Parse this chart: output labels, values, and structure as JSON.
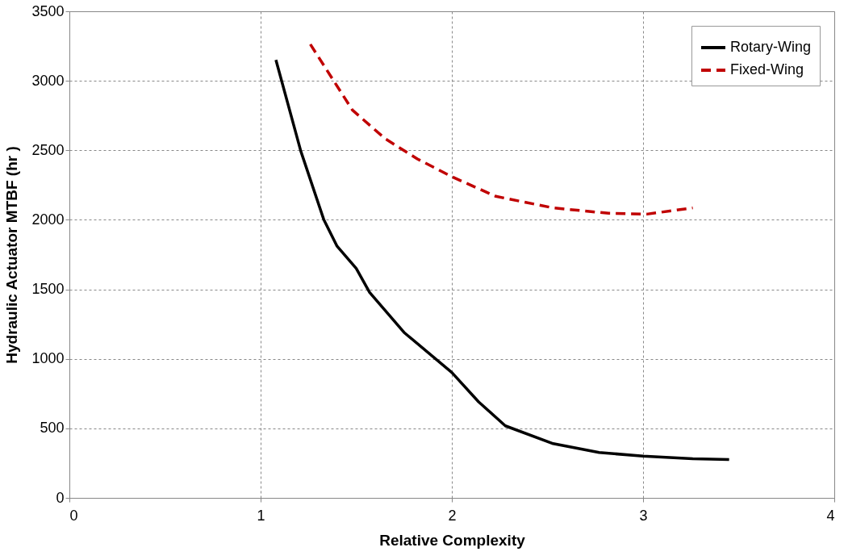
{
  "chart_data": {
    "type": "line",
    "xlabel": "Relative Complexity",
    "ylabel": "Hydraulic Actuator MTBF (hr )",
    "xlim": [
      0,
      4
    ],
    "xticks": [
      0,
      1,
      2,
      3,
      4
    ],
    "ylim": [
      0,
      3500
    ],
    "yticks": [
      0,
      500,
      1000,
      1500,
      2000,
      2500,
      3000,
      3500
    ],
    "grid": true,
    "legend": "top right",
    "marker": "none",
    "series": [
      {
        "name": "Rotary-Wing",
        "color": "#000000",
        "line_style": "solid",
        "x": [
          1.08,
          1.21,
          1.33,
          1.4,
          1.5,
          1.57,
          1.75,
          2.0,
          2.14,
          2.28,
          2.53,
          2.77,
          3.0,
          3.26,
          3.45
        ],
        "values": [
          3150,
          2495,
          2003,
          1810,
          1650,
          1478,
          1190,
          902,
          691,
          518,
          390,
          326,
          301,
          281,
          275
        ]
      },
      {
        "name": "Fixed-Wing",
        "color": "#c00000",
        "line_style": "dashed",
        "x": [
          1.26,
          1.48,
          1.65,
          1.82,
          2.0,
          2.23,
          2.53,
          2.82,
          3.02,
          3.26
        ],
        "values": [
          3263,
          2790,
          2585,
          2438,
          2310,
          2169,
          2086,
          2047,
          2041,
          2086
        ]
      }
    ]
  }
}
